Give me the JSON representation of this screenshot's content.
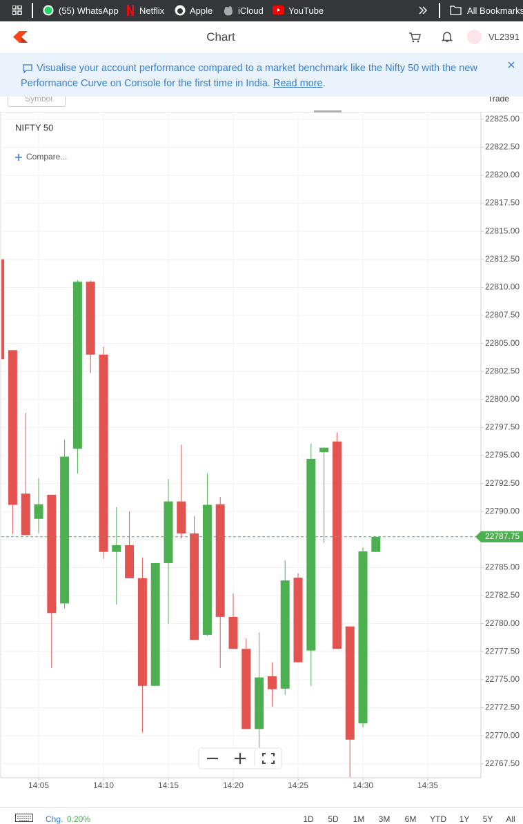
{
  "bookmarks_bar": {
    "items": [
      "(55) WhatsApp",
      "Netflix",
      "Apple",
      "iCloud",
      "YouTube"
    ],
    "all_bookmarks": "All Bookmarks"
  },
  "header": {
    "title": "Chart",
    "user": "VL2391"
  },
  "banner": {
    "text": "Visualise your account performance compared to a market benchmark like the Nifty 50 with the new Performance Curve on Console for the first time in India.",
    "link": "Read more",
    "end": "."
  },
  "toolbar": {
    "symbol": "Symbol",
    "trade": "Trade"
  },
  "chart_data": {
    "type": "candlestick",
    "title": "NIFTY 50",
    "compare_label": "Compare...",
    "categories": [
      null,
      null,
      null,
      "14:05",
      null,
      null,
      null,
      null,
      "14:10",
      null,
      null,
      null,
      null,
      "14:15",
      null,
      null,
      null,
      null,
      "14:20",
      null,
      null,
      null,
      null,
      "14:25",
      null,
      null,
      null,
      null,
      "14:30",
      null,
      null,
      null,
      null,
      "14:35",
      null,
      null,
      null,
      null
    ],
    "open": [
      22812.5,
      22804.4,
      22791.6,
      22789.35,
      22791.5,
      22781.8,
      22795.6,
      22810.5,
      22804.0,
      22786.4,
      22787.0,
      22784.05,
      22774.45,
      22785.4,
      22790.9,
      22788.05,
      22779.0,
      22790.65,
      22780.6,
      22777.75,
      22770.6,
      22775.3,
      22774.2,
      22784.1,
      22777.6,
      22795.3,
      22796.25,
      22779.75,
      22771.1,
      22786.4,
      null,
      null,
      null,
      null,
      null,
      null,
      null,
      null
    ],
    "high": [
      22812.5,
      22804.4,
      22798.8,
      22793.0,
      22791.5,
      22796.4,
      22810.65,
      22810.6,
      22804.7,
      22790.4,
      22790.0,
      22785.9,
      22785.4,
      22792.9,
      22795.95,
      22789.6,
      22793.4,
      22791.3,
      22782.7,
      22778.7,
      22779.2,
      22776.55,
      22785.65,
      22784.5,
      22796.05,
      22795.7,
      22797.05,
      22779.75,
      22786.8,
      22787.75,
      null,
      null,
      null,
      null,
      null,
      null,
      null,
      null
    ],
    "low": [
      22803.6,
      22788.0,
      22787.9,
      22788.05,
      22776.05,
      22781.35,
      22793.4,
      22802.35,
      22785.8,
      22781.7,
      22784.05,
      22770.3,
      22774.45,
      22780.0,
      22787.6,
      22778.55,
      22778.9,
      22776.05,
      22777.75,
      22770.6,
      22768.85,
      22772.6,
      22773.65,
      22776.55,
      22774.45,
      22787.2,
      22777.75,
      22766.3,
      22770.75,
      22786.4,
      null,
      null,
      null,
      null,
      null,
      null,
      null,
      null
    ],
    "close": [
      22803.6,
      22790.6,
      22787.9,
      22790.65,
      22780.95,
      22794.9,
      22810.5,
      22804.0,
      22786.4,
      22787.0,
      22784.05,
      22774.45,
      22785.4,
      22790.9,
      22788.05,
      22778.55,
      22790.6,
      22780.6,
      22777.75,
      22770.6,
      22775.2,
      22774.15,
      22783.85,
      22776.55,
      22794.7,
      22795.7,
      22777.75,
      22769.65,
      22786.45,
      22787.75,
      null,
      null,
      null,
      null,
      null,
      null,
      null,
      null
    ],
    "up_color": "#4caf50",
    "down_color": "#e35350",
    "last_price": 22787.75,
    "ylim": [
      22766.25,
      22825.6
    ],
    "yticks": [
      {
        "value": 22767.5,
        "label": "22767.50"
      },
      {
        "value": 22770,
        "label": "22770.00"
      },
      {
        "value": 22772.5,
        "label": "22772.50"
      },
      {
        "value": 22775,
        "label": "22775.00"
      },
      {
        "value": 22777.5,
        "label": "22777.50"
      },
      {
        "value": 22780,
        "label": "22780.00"
      },
      {
        "value": 22782.5,
        "label": "22782.50"
      },
      {
        "value": 22785,
        "label": "22785.00"
      },
      {
        "value": 22787.5,
        "label": "22787.50"
      },
      {
        "value": 22790,
        "label": "22790.00"
      },
      {
        "value": 22792.5,
        "label": "22792.50"
      },
      {
        "value": 22795,
        "label": "22795.00"
      },
      {
        "value": 22797.5,
        "label": "22797.50"
      },
      {
        "value": 22800,
        "label": "22800.00"
      },
      {
        "value": 22802.5,
        "label": "22802.50"
      },
      {
        "value": 22805,
        "label": "22805.00"
      },
      {
        "value": 22807.5,
        "label": "22807.50"
      },
      {
        "value": 22810,
        "label": "22810.00"
      },
      {
        "value": 22812.5,
        "label": "22812.50"
      },
      {
        "value": 22815,
        "label": "22815.00"
      },
      {
        "value": 22817.5,
        "label": "22817.50"
      },
      {
        "value": 22820,
        "label": "22820.00"
      },
      {
        "value": 22822.5,
        "label": "22822.50"
      },
      {
        "value": 22825,
        "label": "22825.00"
      }
    ],
    "grid": true
  },
  "footer": {
    "chg_label": "Chg.",
    "chg_value": "0.20%",
    "ranges": [
      "1D",
      "5D",
      "1M",
      "3M",
      "6M",
      "YTD",
      "1Y",
      "5Y",
      "All"
    ]
  }
}
